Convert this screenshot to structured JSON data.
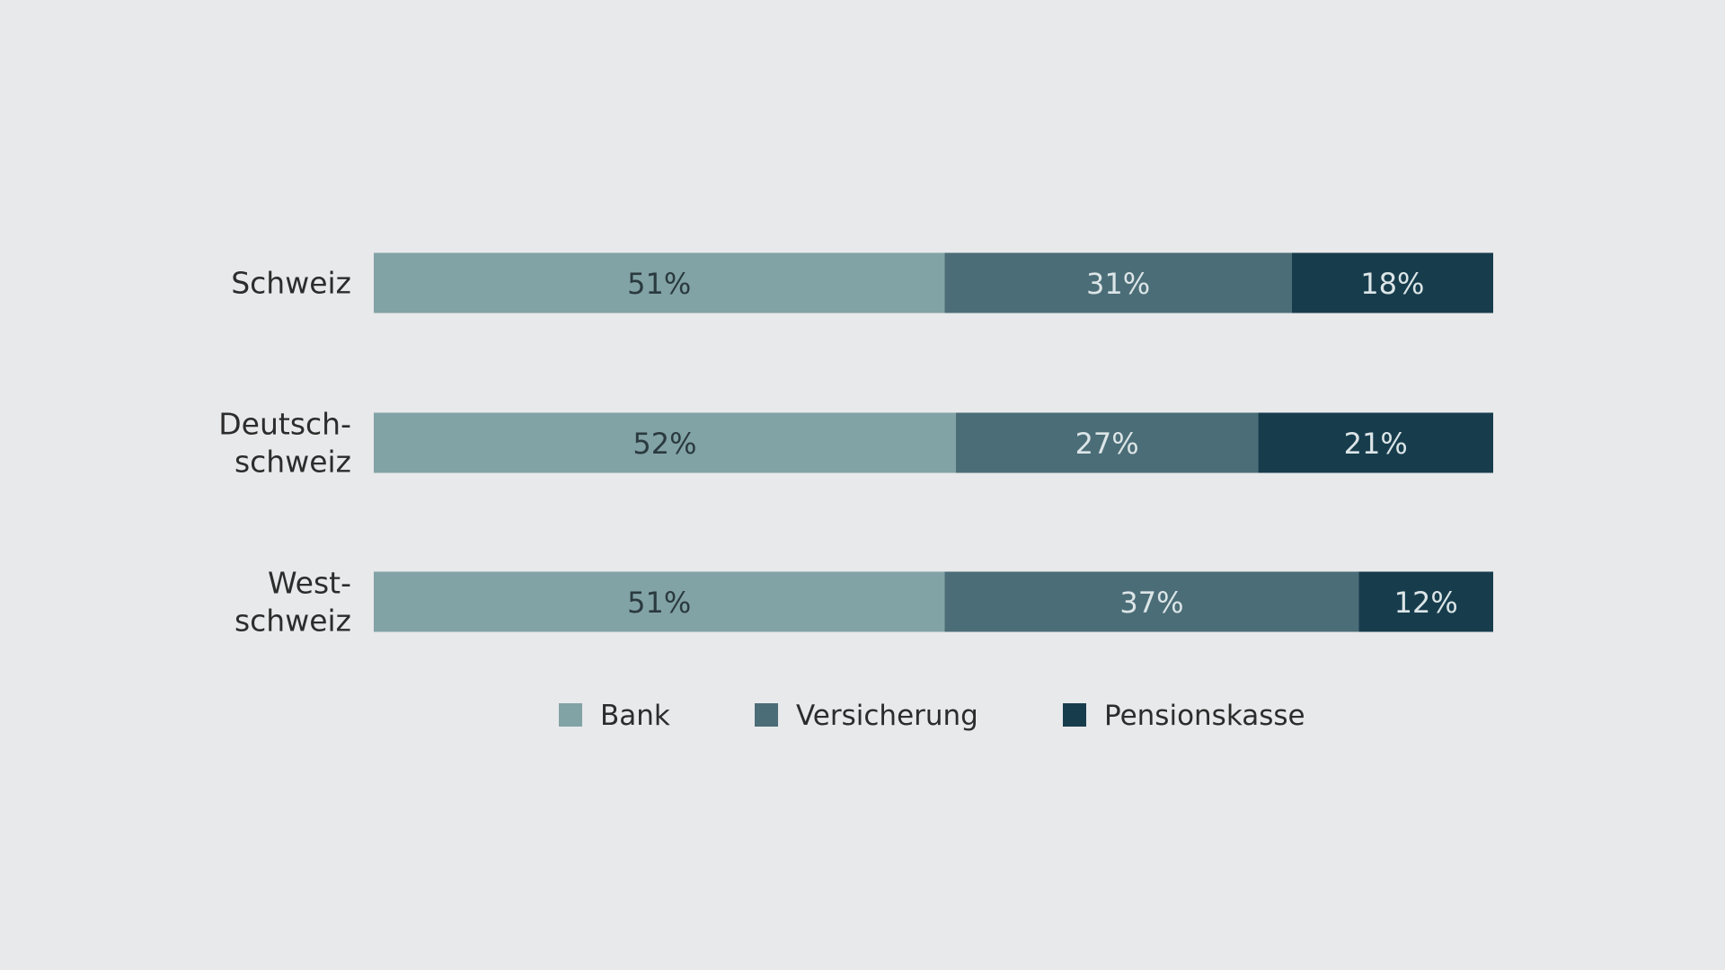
{
  "chart_data": {
    "type": "bar",
    "orientation": "horizontal",
    "stacked": true,
    "percent_stacked": true,
    "categories": [
      [
        "Schweiz"
      ],
      [
        "Deutsch-",
        "schweiz"
      ],
      [
        "West-",
        "schweiz"
      ]
    ],
    "series": [
      {
        "name": "Bank",
        "values": [
          51,
          52,
          51
        ],
        "labels": [
          "51%",
          "52%",
          "51%"
        ],
        "color": "#82a3a6",
        "label_color": "#2a3a3e"
      },
      {
        "name": "Versicherung",
        "values": [
          31,
          27,
          37
        ],
        "labels": [
          "31%",
          "27%",
          "37%"
        ],
        "color": "#4b6d77",
        "label_color": "#dce5e7"
      },
      {
        "name": "Pensionskasse",
        "values": [
          18,
          21,
          12
        ],
        "labels": [
          "18%",
          "21%",
          "12%"
        ],
        "color": "#173d4d",
        "label_color": "#dce5e7"
      }
    ],
    "title": "",
    "xlabel": "",
    "ylabel": "",
    "xlim": [
      0,
      100
    ],
    "grid": false,
    "legend": "bottom-center",
    "background": "#e8e9eb"
  }
}
